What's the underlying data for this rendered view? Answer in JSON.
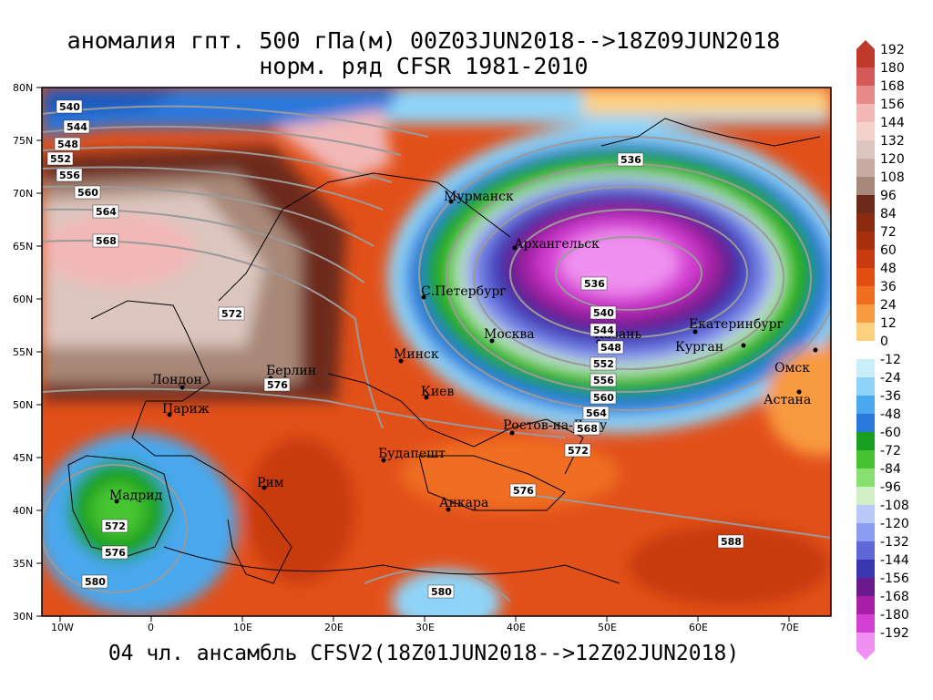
{
  "title_line1": "аномалия гпт. 500 гПа(м) 00Z03JUN2018-->18Z09JUN2018",
  "title_line2": "норм. ряд CFSR 1981-2010",
  "footer": "04 чл. ансамбль CFSV2(18Z01JUN2018-->12Z02JUN2018)",
  "lat_labels": [
    "80N",
    "75N",
    "70N",
    "65N",
    "60N",
    "55N",
    "50N",
    "45N",
    "40N",
    "35N",
    "30N"
  ],
  "lon_labels": [
    "10W",
    "0",
    "10E",
    "20E",
    "30E",
    "40E",
    "50E",
    "60E",
    "70E"
  ],
  "colorbar_labels": [
    "192",
    "180",
    "168",
    "156",
    "144",
    "132",
    "120",
    "108",
    "96",
    "84",
    "72",
    "60",
    "48",
    "36",
    "24",
    "12",
    "0",
    "-12",
    "-24",
    "-36",
    "-48",
    "-60",
    "-72",
    "-84",
    "-96",
    "-108",
    "-120",
    "-132",
    "-144",
    "-156",
    "-168",
    "-180",
    "-192"
  ],
  "colorbar_colors": [
    "#c0392b",
    "#d45a5a",
    "#e88a8a",
    "#f2b8b8",
    "#f3d2cc",
    "#dcc6bf",
    "#c8aba2",
    "#a88878",
    "#6d2a1a",
    "#8a2a10",
    "#a8300e",
    "#c83a10",
    "#e04e10",
    "#ef6e20",
    "#f89a40",
    "#fdd080",
    "#ffffff",
    "#c8eefc",
    "#8fd4f8",
    "#4aa8ee",
    "#2a78dc",
    "#1aa020",
    "#46c430",
    "#88e070",
    "#d2f0c8",
    "#b8c8f8",
    "#8c9cf0",
    "#6068d8",
    "#3a36b0",
    "#6a1a8a",
    "#a820a8",
    "#d440d4",
    "#f090f0"
  ],
  "cities": [
    "Мурманск",
    "Архангельск",
    "С.Петербург",
    "Москва",
    "Казань",
    "Екатеринбург",
    "Курган",
    "Омск",
    "Астана",
    "Минск",
    "Киев",
    "Берлин",
    "Лондон",
    "Париж",
    "Ростов-на-Дону",
    "Будапешт",
    "Рим",
    "Мадрид",
    "Анкара"
  ],
  "contour_labels": [
    "540",
    "544",
    "548",
    "552",
    "556",
    "560",
    "564",
    "568",
    "572",
    "576",
    "536",
    "536",
    "540",
    "544",
    "548",
    "552",
    "556",
    "560",
    "564",
    "568",
    "572",
    "576",
    "572",
    "576",
    "580",
    "580",
    "588"
  ]
}
